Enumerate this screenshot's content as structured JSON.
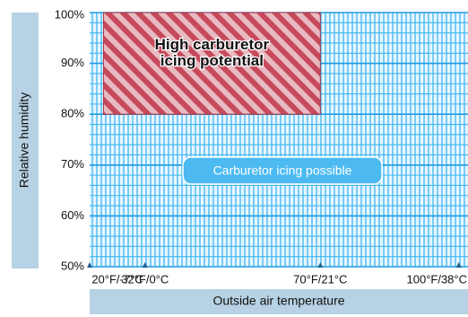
{
  "chart_data": {
    "type": "area",
    "xlabel": "Outside air temperature",
    "ylabel": "Relative humidity",
    "x_ticks": [
      {
        "value": 20,
        "label": "20°F/-7°C"
      },
      {
        "value": 32,
        "label": "32°F/0°C"
      },
      {
        "value": 70,
        "label": "70°F/21°C"
      },
      {
        "value": 100,
        "label": "100°F/38°C"
      }
    ],
    "y_ticks": [
      {
        "value": 50,
        "label": "50%"
      },
      {
        "value": 60,
        "label": "60%"
      },
      {
        "value": 70,
        "label": "70%"
      },
      {
        "value": 80,
        "label": "80%"
      },
      {
        "value": 90,
        "label": "90%"
      },
      {
        "value": 100,
        "label": "100%"
      }
    ],
    "xlim": [
      20,
      102
    ],
    "ylim": [
      50,
      100
    ],
    "grid": true,
    "regions": [
      {
        "name": "High carburetor icing potential",
        "label_lines": [
          "High carburetor",
          "icing potential"
        ],
        "x_range": [
          23,
          70
        ],
        "y_range": [
          80,
          100
        ],
        "pattern": "diagonal-stripes",
        "colors": [
          "#c64a5b",
          "#e0a3ad"
        ]
      },
      {
        "name": "Carburetor icing possible",
        "label": "Carburetor icing possible",
        "x_range": [
          20,
          102
        ],
        "y_range": [
          50,
          100
        ],
        "pattern": "grid",
        "colors": [
          "#42b6f2",
          "#e4f5ff"
        ]
      }
    ]
  },
  "colors": {
    "axis_bar": "#b7d2e4",
    "grid_line": "#42b6f2",
    "grid_background": "#e6f6ff",
    "major_line": "#1f9be3",
    "label_box_fill": "#4cbaf0",
    "label_box_stroke": "#ffffff",
    "text_dark": "#111111",
    "text_light": "#ffffff"
  }
}
